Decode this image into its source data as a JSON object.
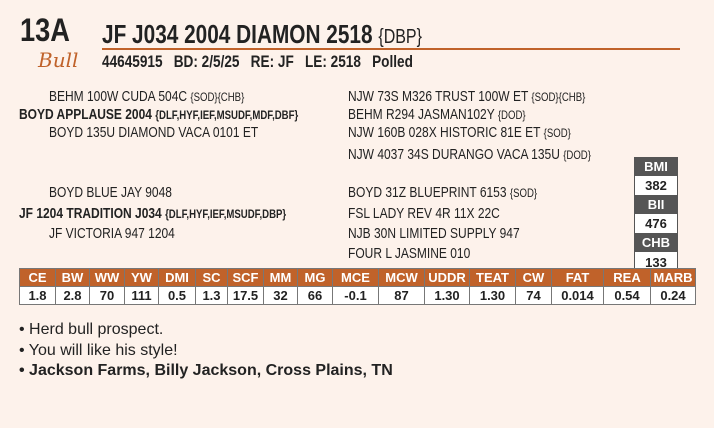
{
  "lot": "13A",
  "sex": "Bull",
  "name": "JF J034 2004 DIAMON 2518",
  "name_tag": "{DBP}",
  "ids": {
    "reg": "44645915",
    "bd": "BD: 2/5/25",
    "re": "RE: JF",
    "le": "LE: 2518",
    "polled": "Polled"
  },
  "pedigree": {
    "sire_sire": {
      "name": "BEHM 100W CUDA 504C",
      "tag": "{SOD}{CHB}"
    },
    "sire": {
      "name": "BOYD APPLAUSE 2004",
      "tag": "{DLF,HYF,IEF,MSUDF,MDF,DBF}"
    },
    "sire_dam": {
      "name": "BOYD 135U DIAMOND VACA 0101 ET",
      "tag": ""
    },
    "sss": {
      "name": "NJW 73S M326 TRUST 100W ET",
      "tag": "{SOD}{CHB}"
    },
    "ssd": {
      "name": "BEHM R294 JASMAN102Y",
      "tag": "{DOD}"
    },
    "sds": {
      "name": "NJW 160B 028X HISTORIC 81E ET",
      "tag": "{SOD}"
    },
    "sdd": {
      "name": "NJW 4037 34S DURANGO VACA 135U",
      "tag": "{DOD}"
    },
    "dam_sire": {
      "name": "BOYD BLUE JAY 9048",
      "tag": ""
    },
    "dam": {
      "name": "JF 1204 TRADITION J034",
      "tag": "{DLF,HYF,IEF,MSUDF,DBP}"
    },
    "dam_dam": {
      "name": "JF VICTORIA 947 1204",
      "tag": ""
    },
    "dss": {
      "name": "BOYD 31Z BLUEPRINT 6153",
      "tag": "{SOD}"
    },
    "dsd": {
      "name": "FSL LADY REV 4R 11X 22C",
      "tag": ""
    },
    "dds": {
      "name": "NJB 30N LIMITED SUPPLY 947",
      "tag": ""
    },
    "ddd": {
      "name": "FOUR L JASMINE 010",
      "tag": ""
    }
  },
  "indexes": [
    {
      "label": "BMI",
      "value": "382"
    },
    {
      "label": "BII",
      "value": "476"
    },
    {
      "label": "CHB",
      "value": "133"
    }
  ],
  "epd": {
    "headers": [
      "CE",
      "BW",
      "WW",
      "YW",
      "DMI",
      "SC",
      "SCF",
      "MM",
      "MG",
      "MCE",
      "MCW",
      "UDDR",
      "TEAT",
      "CW",
      "FAT",
      "REA",
      "MARB"
    ],
    "values": [
      "1.8",
      "2.8",
      "70",
      "111",
      "0.5",
      "1.3",
      "17.5",
      "32",
      "66",
      "-0.1",
      "87",
      "1.30",
      "1.30",
      "74",
      "0.014",
      "0.54",
      "0.24"
    ]
  },
  "notes": [
    "Herd bull prospect.",
    "You will like his style!",
    "Jackson Farms, Billy Jackson, Cross Plains, TN"
  ],
  "colors": {
    "accent": "#c0622a",
    "index_header": "#555555",
    "background": "#fdf2eb"
  }
}
